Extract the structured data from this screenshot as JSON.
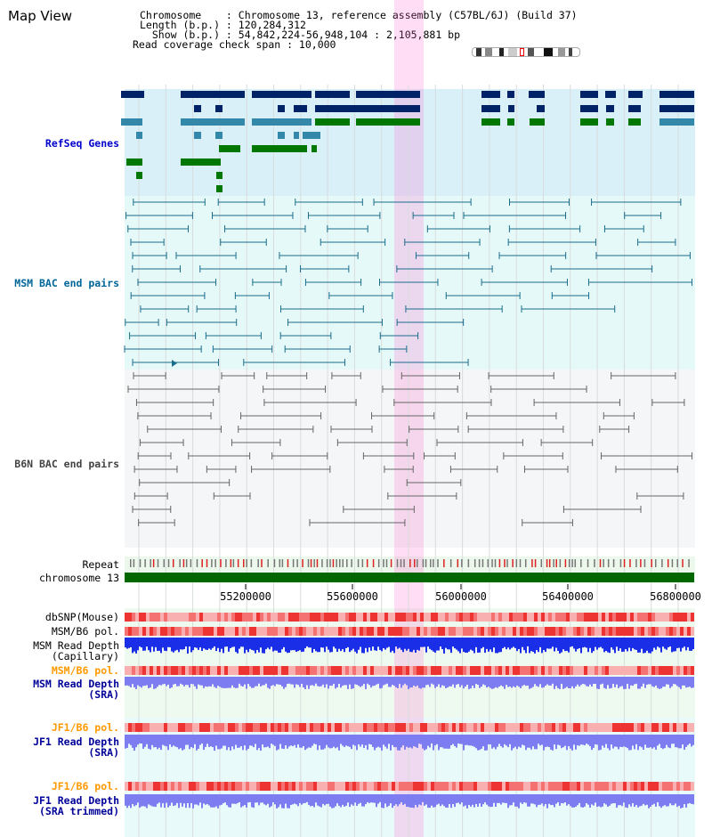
{
  "header": {
    "title": "Map View",
    "chromosome_line": "Chromosome    : Chromosome 13, reference assembly (C57BL/6J) (Build 37)",
    "length_line": "Length (b.p.) : 120,284,312",
    "show_line": "  Show (b.p.) : 54,842,224-56,948,104 : 2,105,881 bp",
    "coverage_line": "Read coverage check span : 10,000"
  },
  "tracks": {
    "refseq": "RefSeq Genes",
    "msm_bac": "MSM BAC end pairs",
    "b6n_bac": "B6N BAC end pairs",
    "repeat": "Repeat",
    "chromosome": "chromosome 13",
    "dbsnp": "dbSNP(Mouse)",
    "msm_b6_pol_1": "MSM/B6 pol.",
    "msm_read_depth_cap_1": "MSM Read Depth",
    "msm_read_depth_cap_2": "(Capillary)",
    "msm_b6_pol_2": "MSM/B6 pol.",
    "msm_read_depth_sra_1": "MSM Read Depth",
    "msm_read_depth_sra_2": "(SRA)",
    "jf1_b6_pol_1": "JF1/B6 pol.",
    "jf1_read_depth_sra_1": "JF1 Read Depth",
    "jf1_read_depth_sra_2": "(SRA)",
    "jf1_b6_pol_2": "JF1/B6 pol.",
    "jf1_read_depth_trim_1": "JF1 Read Depth",
    "jf1_read_depth_trim_2": "(SRA trimmed)"
  },
  "axis": {
    "ticks": [
      "55200000",
      "55600000",
      "56000000",
      "56400000",
      "56800000"
    ]
  },
  "colors": {
    "refseq_label": "#0000cc",
    "msm_label": "#006699",
    "b6n_label": "#444444",
    "pol_label": "#ff9900",
    "depth_label": "#000099",
    "highlight": "#ff66cc",
    "gene_dark": "#002266",
    "gene_teal": "#3388aa",
    "gene_green": "#007700"
  }
}
